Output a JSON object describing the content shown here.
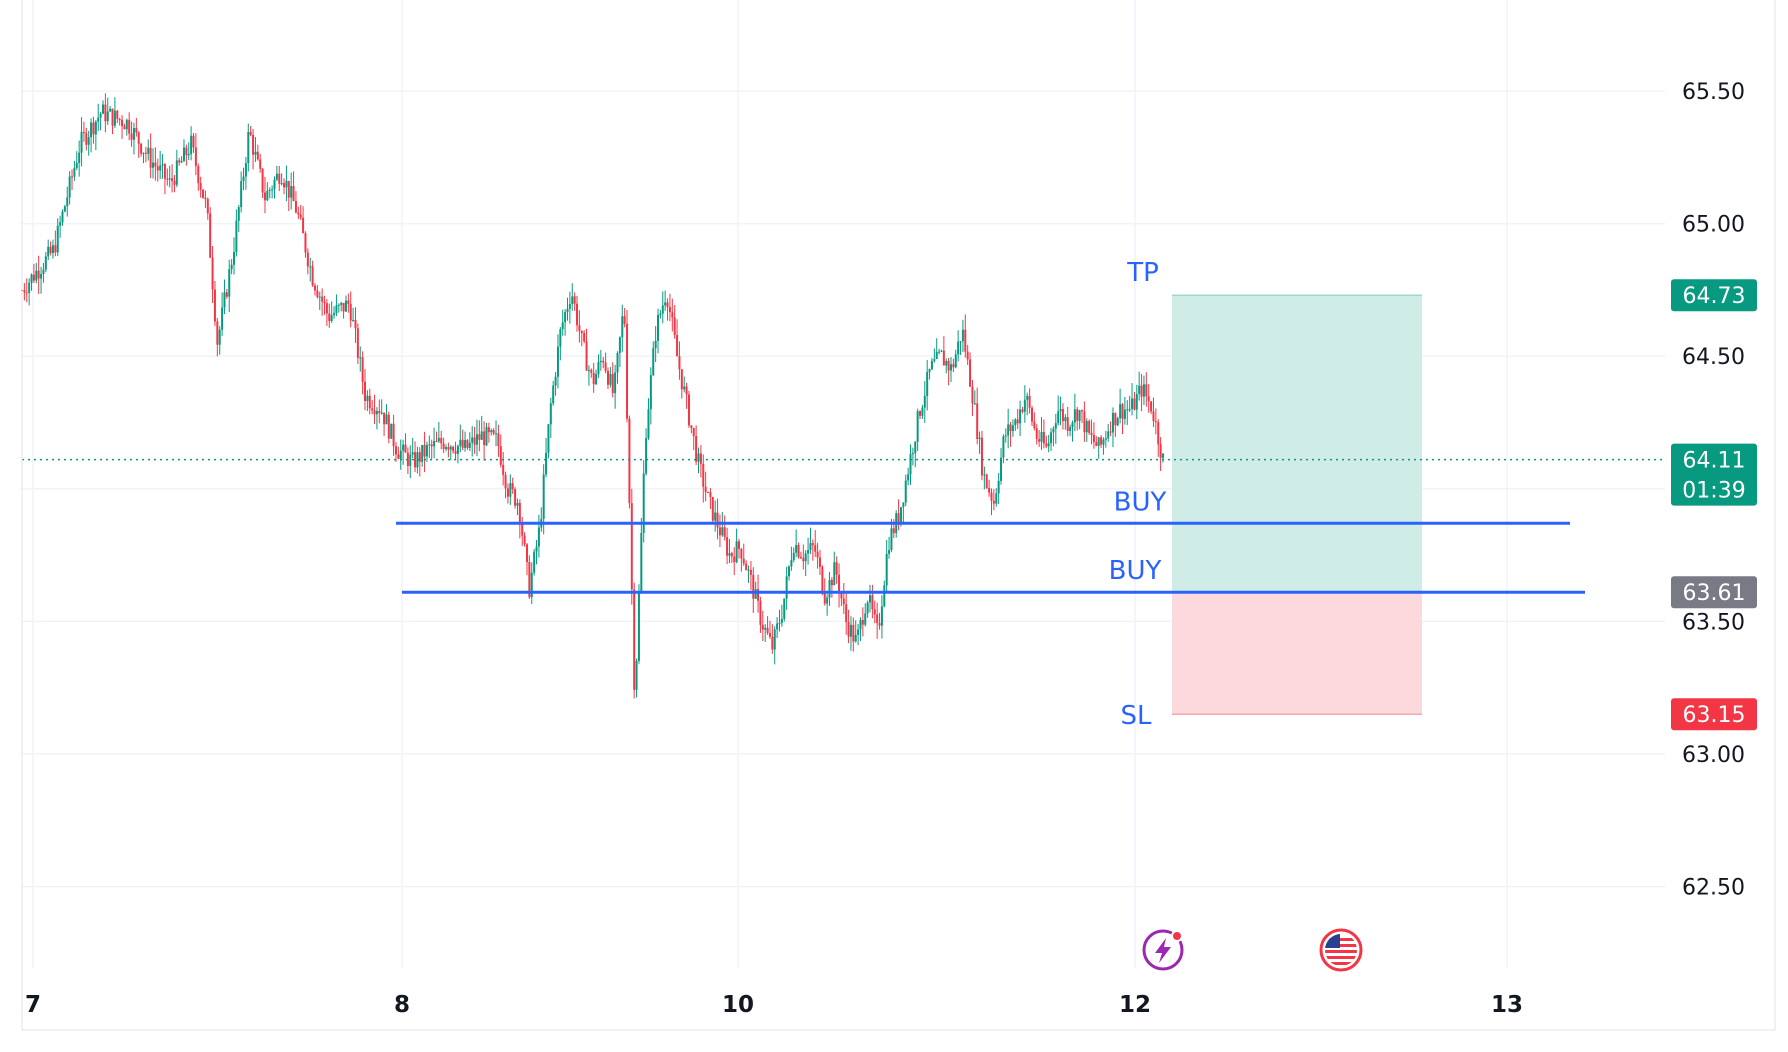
{
  "chart_data": {
    "type": "candlestick",
    "title": "",
    "xlabel": "",
    "ylabel": "",
    "x_ticks": [
      "7",
      "8",
      "10",
      "12",
      "13"
    ],
    "y_ticks": [
      "65.50",
      "65.00",
      "64.50",
      "63.50",
      "63.00",
      "62.50"
    ],
    "ylim": [
      62.3,
      65.8
    ],
    "grid": true,
    "colors": {
      "up": "#089981",
      "down": "#f23645",
      "line": "#2962ff",
      "profit_zone": "#cfece6",
      "loss_zone": "#fcd9dc",
      "price_badge": "#089981",
      "entry_badge": "#787b86",
      "sl_badge": "#f23645"
    },
    "price_path": [
      [
        0,
        64.75
      ],
      [
        6,
        64.9
      ],
      [
        11,
        65.3
      ],
      [
        15,
        65.42
      ],
      [
        20,
        65.38
      ],
      [
        24,
        65.25
      ],
      [
        28,
        65.15
      ],
      [
        32,
        65.3
      ],
      [
        35,
        65.05
      ],
      [
        37,
        64.55
      ],
      [
        40,
        64.9
      ],
      [
        43,
        65.35
      ],
      [
        46,
        65.1
      ],
      [
        49,
        65.2
      ],
      [
        52,
        65.05
      ],
      [
        55,
        64.8
      ],
      [
        58,
        64.65
      ],
      [
        62,
        64.7
      ],
      [
        65,
        64.35
      ],
      [
        68,
        64.3
      ],
      [
        71,
        64.15
      ],
      [
        74,
        64.1
      ],
      [
        77,
        64.15
      ],
      [
        80,
        64.18
      ],
      [
        84,
        64.15
      ],
      [
        87,
        64.2
      ],
      [
        90,
        64.18
      ],
      [
        92,
        64.0
      ],
      [
        94,
        63.95
      ],
      [
        96,
        63.62
      ],
      [
        98,
        63.85
      ],
      [
        100,
        64.3
      ],
      [
        102,
        64.6
      ],
      [
        104,
        64.75
      ],
      [
        106,
        64.55
      ],
      [
        108,
        64.4
      ],
      [
        110,
        64.5
      ],
      [
        112,
        64.35
      ],
      [
        114,
        64.7
      ],
      [
        116,
        63.2
      ],
      [
        118,
        64.2
      ],
      [
        120,
        64.6
      ],
      [
        122,
        64.75
      ],
      [
        124,
        64.5
      ],
      [
        126,
        64.3
      ],
      [
        128,
        64.1
      ],
      [
        130,
        63.95
      ],
      [
        132,
        63.85
      ],
      [
        134,
        63.75
      ],
      [
        136,
        63.78
      ],
      [
        138,
        63.65
      ],
      [
        140,
        63.5
      ],
      [
        142,
        63.4
      ],
      [
        144,
        63.55
      ],
      [
        146,
        63.8
      ],
      [
        148,
        63.75
      ],
      [
        150,
        63.78
      ],
      [
        152,
        63.6
      ],
      [
        154,
        63.7
      ],
      [
        156,
        63.5
      ],
      [
        158,
        63.42
      ],
      [
        160,
        63.6
      ],
      [
        162,
        63.45
      ],
      [
        164,
        63.8
      ],
      [
        166,
        63.9
      ],
      [
        168,
        64.1
      ],
      [
        170,
        64.3
      ],
      [
        172,
        64.45
      ],
      [
        174,
        64.5
      ],
      [
        176,
        64.45
      ],
      [
        178,
        64.6
      ],
      [
        180,
        64.35
      ],
      [
        182,
        64.05
      ],
      [
        184,
        63.95
      ],
      [
        186,
        64.2
      ],
      [
        188,
        64.25
      ],
      [
        190,
        64.35
      ],
      [
        192,
        64.2
      ],
      [
        194,
        64.15
      ],
      [
        196,
        64.3
      ],
      [
        198,
        64.25
      ],
      [
        200,
        64.3
      ],
      [
        202,
        64.2
      ],
      [
        204,
        64.15
      ],
      [
        206,
        64.25
      ],
      [
        208,
        64.3
      ],
      [
        210,
        64.3
      ],
      [
        212,
        64.38
      ],
      [
        214,
        64.3
      ],
      [
        216,
        64.11
      ]
    ],
    "current_price": "64.11",
    "countdown": "01:39",
    "position": {
      "tp_label": "TP",
      "tp_price": "64.73",
      "entry_price": "63.61",
      "sl_label": "SL",
      "sl_price": "63.15"
    },
    "buy_lines": [
      {
        "label": "BUY",
        "price": 63.87
      },
      {
        "label": "BUY",
        "price": 63.61
      }
    ]
  },
  "icons": [
    "lightning-icon",
    "us-flag-icon"
  ]
}
